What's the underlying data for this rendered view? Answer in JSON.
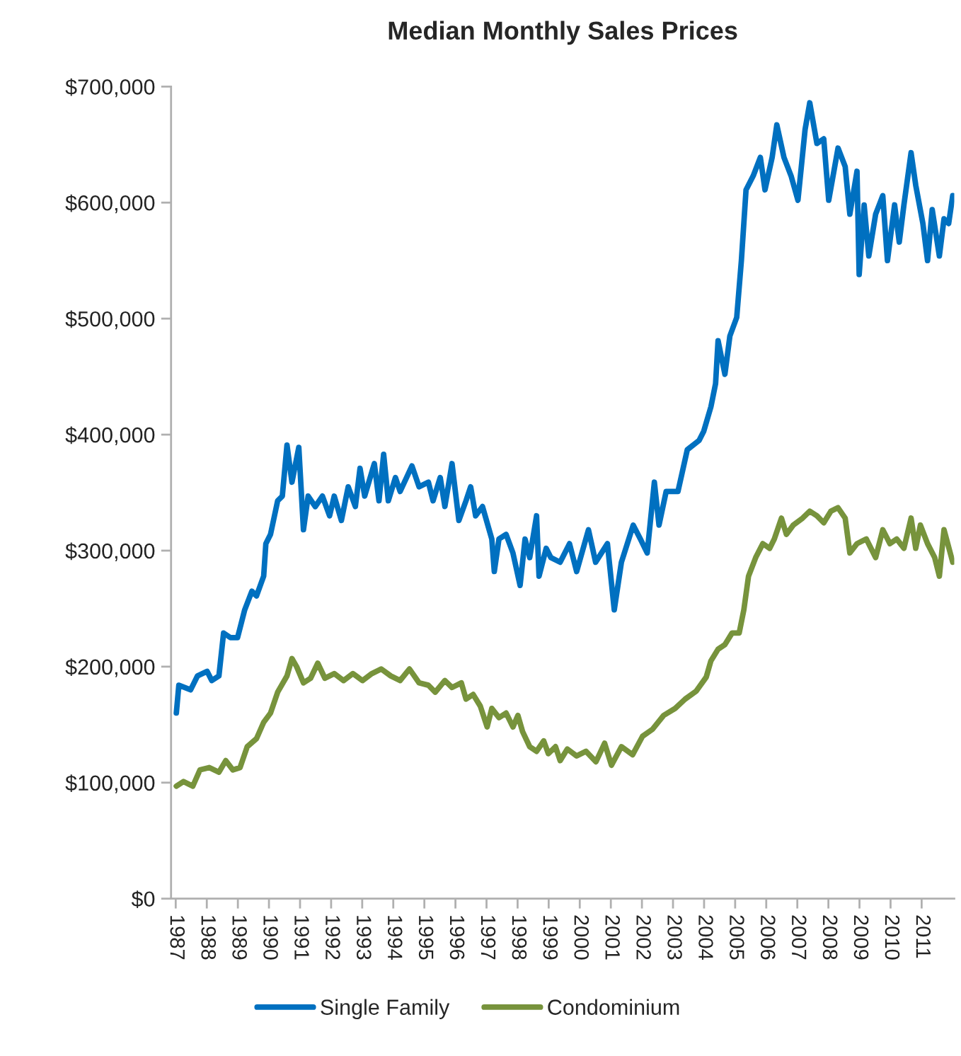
{
  "chart_data": {
    "type": "line",
    "title": "Median Monthly Sales Prices",
    "xlim": [
      1986.85,
      2012.05
    ],
    "xticks": [
      1987,
      1988,
      1989,
      1990,
      1991,
      1992,
      1993,
      1994,
      1995,
      1996,
      1997,
      1998,
      1999,
      2000,
      2001,
      2002,
      2003,
      2004,
      2005,
      2006,
      2007,
      2008,
      2009,
      2010,
      2011
    ],
    "ylim": [
      0,
      700000
    ],
    "yticks": [
      {
        "value": 0,
        "label": "$0"
      },
      {
        "value": 100000,
        "label": "$100,000"
      },
      {
        "value": 200000,
        "label": "$200,000"
      },
      {
        "value": 300000,
        "label": "$300,000"
      },
      {
        "value": 400000,
        "label": "$400,000"
      },
      {
        "value": 500000,
        "label": "$500,000"
      },
      {
        "value": 600000,
        "label": "$600,000"
      },
      {
        "value": 700000,
        "label": "$700,000"
      }
    ],
    "legend": "bottom",
    "grid": false,
    "series": [
      {
        "name": "Single Family",
        "color": "#0070c0",
        "x": [
          1987.02,
          1987.1,
          1987.48,
          1987.7,
          1988.01,
          1988.16,
          1988.39,
          1988.54,
          1988.76,
          1988.99,
          1989.22,
          1989.45,
          1989.6,
          1989.83,
          1989.9,
          1990.05,
          1990.28,
          1990.43,
          1990.58,
          1990.74,
          1990.96,
          1991.11,
          1991.26,
          1991.49,
          1991.72,
          1991.95,
          1992.1,
          1992.33,
          1992.55,
          1992.78,
          1992.93,
          1993.08,
          1993.39,
          1993.54,
          1993.69,
          1993.84,
          1994.07,
          1994.22,
          1994.6,
          1994.83,
          1995.13,
          1995.28,
          1995.51,
          1995.66,
          1995.89,
          1996.11,
          1996.34,
          1996.49,
          1996.65,
          1996.87,
          1997.17,
          1997.25,
          1997.4,
          1997.63,
          1997.85,
          1998.08,
          1998.24,
          1998.39,
          1998.61,
          1998.69,
          1998.92,
          1999.07,
          1999.37,
          1999.67,
          1999.9,
          2000.28,
          2000.51,
          2000.89,
          2001.11,
          2001.34,
          2001.72,
          2001.95,
          2002.17,
          2002.4,
          2002.55,
          2002.78,
          2003.16,
          2003.46,
          2003.84,
          2003.99,
          2004.22,
          2004.37,
          2004.45,
          2004.67,
          2004.83,
          2005.05,
          2005.2,
          2005.35,
          2005.58,
          2005.81,
          2005.96,
          2006.19,
          2006.34,
          2006.57,
          2006.8,
          2007.02,
          2007.25,
          2007.4,
          2007.63,
          2007.85,
          2008.01,
          2008.31,
          2008.54,
          2008.69,
          2008.92,
          2008.99,
          2009.15,
          2009.3,
          2009.52,
          2009.75,
          2009.9,
          2010.13,
          2010.28,
          2010.43,
          2010.66,
          2010.81,
          2011.04,
          2011.19,
          2011.34,
          2011.57,
          2011.72,
          2011.87,
          2012.0
        ],
        "values": [
          160000,
          184000,
          180000,
          192000,
          196000,
          188000,
          192000,
          229000,
          225000,
          225000,
          249000,
          265000,
          261000,
          278000,
          306000,
          314000,
          343000,
          347000,
          391000,
          359000,
          389000,
          318000,
          347000,
          338000,
          347000,
          330000,
          347000,
          326000,
          355000,
          338000,
          371000,
          347000,
          375000,
          343000,
          383000,
          343000,
          363000,
          351000,
          373000,
          355000,
          359000,
          343000,
          363000,
          338000,
          375000,
          326000,
          343000,
          355000,
          330000,
          338000,
          310000,
          282000,
          310000,
          314000,
          298000,
          270000,
          310000,
          294000,
          330000,
          278000,
          302000,
          294000,
          290000,
          306000,
          282000,
          318000,
          290000,
          306000,
          249000,
          290000,
          322000,
          310000,
          298000,
          359000,
          322000,
          351000,
          351000,
          387000,
          395000,
          403000,
          424000,
          444000,
          481000,
          452000,
          485000,
          501000,
          550000,
          611000,
          623000,
          639000,
          611000,
          639000,
          667000,
          639000,
          623000,
          602000,
          663000,
          686000,
          651000,
          655000,
          602000,
          647000,
          631000,
          590000,
          627000,
          538000,
          598000,
          554000,
          590000,
          606000,
          550000,
          598000,
          566000,
          598000,
          643000,
          615000,
          582000,
          550000,
          594000,
          554000,
          586000,
          582000,
          606000
        ]
      },
      {
        "name": "Condominium",
        "color": "#77933c",
        "x": [
          1987.02,
          1987.25,
          1987.55,
          1987.78,
          1988.08,
          1988.39,
          1988.61,
          1988.84,
          1989.07,
          1989.3,
          1989.6,
          1989.83,
          1990.05,
          1990.28,
          1990.58,
          1990.74,
          1990.89,
          1991.11,
          1991.34,
          1991.57,
          1991.8,
          1992.1,
          1992.4,
          1992.7,
          1993.01,
          1993.31,
          1993.61,
          1993.92,
          1994.22,
          1994.52,
          1994.83,
          1995.13,
          1995.35,
          1995.66,
          1995.89,
          1996.19,
          1996.34,
          1996.57,
          1996.8,
          1997.02,
          1997.17,
          1997.4,
          1997.63,
          1997.85,
          1998.01,
          1998.16,
          1998.39,
          1998.61,
          1998.84,
          1998.99,
          1999.22,
          1999.37,
          1999.6,
          1999.9,
          2000.2,
          2000.52,
          2000.8,
          2001.02,
          2001.34,
          2001.7,
          2002.02,
          2002.34,
          2002.7,
          2003.07,
          2003.39,
          2003.75,
          2004.07,
          2004.22,
          2004.45,
          2004.67,
          2004.9,
          2005.13,
          2005.28,
          2005.43,
          2005.66,
          2005.89,
          2006.11,
          2006.26,
          2006.49,
          2006.65,
          2006.87,
          2007.17,
          2007.4,
          2007.63,
          2007.85,
          2008.08,
          2008.31,
          2008.54,
          2008.69,
          2008.92,
          2009.22,
          2009.52,
          2009.75,
          2009.98,
          2010.2,
          2010.43,
          2010.66,
          2010.81,
          2010.96,
          2011.19,
          2011.42,
          2011.57,
          2011.72,
          2012.0
        ],
        "values": [
          97000,
          101000,
          97000,
          111000,
          113000,
          109000,
          119000,
          111000,
          113000,
          131000,
          138000,
          152000,
          160000,
          178000,
          192000,
          207000,
          200000,
          186000,
          190000,
          203000,
          190000,
          194000,
          188000,
          194000,
          188000,
          194000,
          198000,
          192000,
          188000,
          198000,
          186000,
          184000,
          178000,
          188000,
          182000,
          186000,
          172000,
          176000,
          166000,
          148000,
          164000,
          156000,
          160000,
          148000,
          158000,
          144000,
          131000,
          127000,
          136000,
          125000,
          131000,
          119000,
          129000,
          123000,
          127000,
          118000,
          134000,
          115000,
          131000,
          124000,
          140000,
          146000,
          158000,
          164000,
          172000,
          179000,
          191000,
          205000,
          215000,
          219000,
          229000,
          229000,
          249000,
          278000,
          294000,
          306000,
          302000,
          310000,
          328000,
          314000,
          322000,
          328000,
          334000,
          330000,
          324000,
          334000,
          337000,
          328000,
          298000,
          306000,
          310000,
          294000,
          318000,
          306000,
          310000,
          302000,
          328000,
          302000,
          322000,
          306000,
          294000,
          278000,
          318000,
          290000
        ]
      }
    ]
  }
}
